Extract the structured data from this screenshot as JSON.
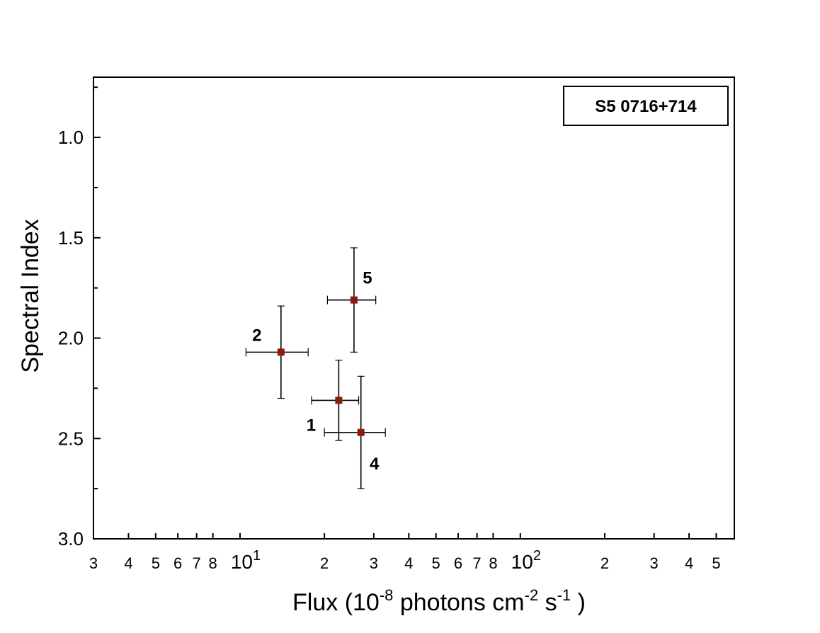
{
  "chart_data": {
    "type": "scatter",
    "title": "",
    "legend_text": "S5 0716+714",
    "legend_position": "top-right",
    "xlabel": {
      "main": "Flux  (10",
      "exp1": "-8",
      "mid": " photons  cm",
      "exp2": "-2",
      "mid2": " s",
      "exp3": "-1",
      "end": " )"
    },
    "ylabel": "Spectral Index",
    "x_scale": "log",
    "y_inverted": true,
    "xlim": [
      3,
      580
    ],
    "ylim": [
      0.7,
      3.0
    ],
    "x_ticks": [
      {
        "value": 3,
        "label": "3"
      },
      {
        "value": 4,
        "label": "4"
      },
      {
        "value": 5,
        "label": "5"
      },
      {
        "value": 6,
        "label": "6"
      },
      {
        "value": 7,
        "label": "7"
      },
      {
        "value": 8,
        "label": "8"
      },
      {
        "value": 10,
        "label": "10",
        "sup": "1"
      },
      {
        "value": 20,
        "label": "2"
      },
      {
        "value": 30,
        "label": "3"
      },
      {
        "value": 40,
        "label": "4"
      },
      {
        "value": 50,
        "label": "5"
      },
      {
        "value": 60,
        "label": "6"
      },
      {
        "value": 70,
        "label": "7"
      },
      {
        "value": 80,
        "label": "8"
      },
      {
        "value": 100,
        "label": "10",
        "sup": "2"
      },
      {
        "value": 200,
        "label": "2"
      },
      {
        "value": 300,
        "label": "3"
      },
      {
        "value": 400,
        "label": "4"
      },
      {
        "value": 500,
        "label": "5"
      }
    ],
    "y_ticks": [
      {
        "value": 1.0,
        "label": "1.0"
      },
      {
        "value": 1.5,
        "label": "1.5"
      },
      {
        "value": 2.0,
        "label": "2.0"
      },
      {
        "value": 2.5,
        "label": "2.5"
      },
      {
        "value": 3.0,
        "label": "3.0"
      }
    ],
    "y_minor_ticks": [
      0.75,
      1.25,
      1.75,
      2.25,
      2.75
    ],
    "points": [
      {
        "label": "1",
        "x": 22.5,
        "y": 2.31,
        "xerr": [
          18.0,
          26.5
        ],
        "yerr": [
          2.11,
          2.51
        ],
        "label_side": "below-left"
      },
      {
        "label": "2",
        "x": 14.0,
        "y": 2.07,
        "xerr": [
          10.5,
          17.5
        ],
        "yerr": [
          1.84,
          2.3
        ],
        "label_side": "above-left"
      },
      {
        "label": "4",
        "x": 27.0,
        "y": 2.47,
        "xerr": [
          20.0,
          33.0
        ],
        "yerr": [
          2.19,
          2.75
        ],
        "label_side": "below-right"
      },
      {
        "label": "5",
        "x": 25.5,
        "y": 1.81,
        "xerr": [
          20.5,
          30.5
        ],
        "yerr": [
          1.55,
          2.07
        ],
        "label_side": "above-right"
      }
    ],
    "colors": {
      "marker": "#8b1a10",
      "axis": "#000000"
    }
  }
}
